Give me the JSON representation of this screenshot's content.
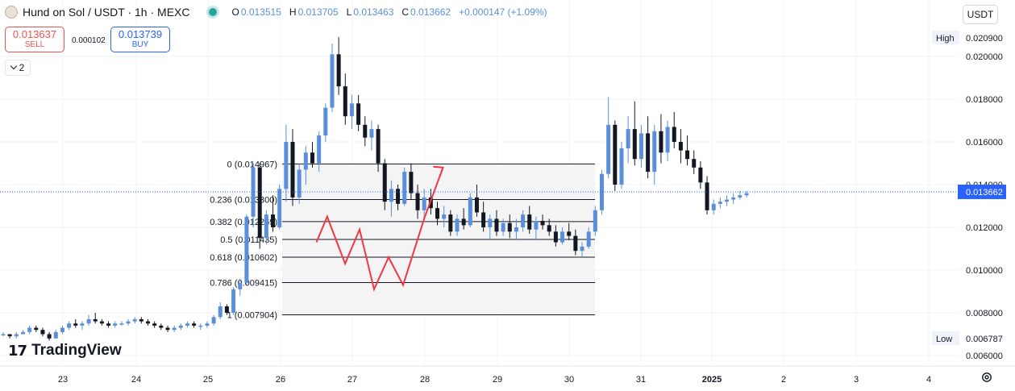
{
  "header": {
    "symbol": "Hund on Sol / USDT · 1h · MEXC",
    "o_label": "O",
    "o_value": "0.013515",
    "h_label": "H",
    "h_value": "0.013705",
    "l_label": "L",
    "l_value": "0.013463",
    "c_label": "C",
    "c_value": "0.013662",
    "change": "+0.000147 (+1.09%)"
  },
  "trade": {
    "sell_price": "0.013637",
    "sell_label": "SELL",
    "spread": "0.000102",
    "buy_price": "0.013739",
    "buy_label": "BUY"
  },
  "indicators_toggle": {
    "count": "2"
  },
  "currency_selector": {
    "label": "USDT"
  },
  "branding": {
    "logo_mark": "17",
    "name": "TradingView"
  },
  "colors": {
    "up": "#5b8fd9",
    "down": "#131722",
    "drawing": "#f23645",
    "last_price": "#2962ff"
  },
  "chart_data": {
    "type": "candlestick",
    "y_axis": {
      "ticks": [
        "0.020000",
        "0.018000",
        "0.016000",
        "0.014000",
        "0.012000",
        "0.010000",
        "0.008000",
        "0.006000"
      ],
      "range": [
        0.0055,
        0.0216
      ],
      "high_label": "High",
      "high_value": "0.020900",
      "low_label": "Low",
      "low_value": "0.006787",
      "last_price": "0.013662"
    },
    "x_axis": {
      "ticks": [
        "23",
        "24",
        "25",
        "26",
        "27",
        "28",
        "29",
        "30",
        "31",
        "2025",
        "2",
        "3",
        "4"
      ]
    },
    "fibonacci": [
      {
        "label": "0 (0.014967)",
        "price": 0.014967
      },
      {
        "label": "0.236 (0.013300)",
        "price": 0.0133
      },
      {
        "label": "0.382 (0.012269)",
        "price": 0.012269
      },
      {
        "label": "0.5 (0.011435)",
        "price": 0.011435
      },
      {
        "label": "0.618 (0.010602)",
        "price": 0.010602
      },
      {
        "label": "0.786 (0.009415)",
        "price": 0.009415
      },
      {
        "label": "1 (0.007904)",
        "price": 0.007904
      }
    ],
    "drawing_path": [
      {
        "x": "26.5",
        "y": 0.0113
      },
      {
        "x": "26.65",
        "y": 0.0125
      },
      {
        "x": "26.9",
        "y": 0.0103
      },
      {
        "x": "27.1",
        "y": 0.0119
      },
      {
        "x": "27.3",
        "y": 0.0091
      },
      {
        "x": "27.5",
        "y": 0.0106
      },
      {
        "x": "27.7",
        "y": 0.0093
      },
      {
        "x": "28.0",
        "y": 0.0125
      },
      {
        "x": "28.25",
        "y": 0.0148
      }
    ],
    "candles": [
      [
        0.007,
        0.0071,
        0.0069,
        0.007
      ],
      [
        0.007,
        0.007,
        0.0068,
        0.0069
      ],
      [
        0.0069,
        0.0071,
        0.0068,
        0.007
      ],
      [
        0.007,
        0.0072,
        0.007,
        0.0071
      ],
      [
        0.0071,
        0.0074,
        0.007,
        0.0073
      ],
      [
        0.0073,
        0.0074,
        0.0071,
        0.0072
      ],
      [
        0.0072,
        0.0073,
        0.0069,
        0.007
      ],
      [
        0.007,
        0.0071,
        0.0067,
        0.0068
      ],
      [
        0.0068,
        0.0072,
        0.0068,
        0.0071
      ],
      [
        0.0071,
        0.0074,
        0.007,
        0.0073
      ],
      [
        0.0073,
        0.0076,
        0.0072,
        0.0075
      ],
      [
        0.0075,
        0.0077,
        0.0073,
        0.0074
      ],
      [
        0.0074,
        0.0076,
        0.0072,
        0.0075
      ],
      [
        0.0075,
        0.0079,
        0.0074,
        0.0077
      ],
      [
        0.0077,
        0.008,
        0.0075,
        0.0076
      ],
      [
        0.0076,
        0.0077,
        0.0074,
        0.0075
      ],
      [
        0.0075,
        0.0076,
        0.0073,
        0.0074
      ],
      [
        0.0074,
        0.0076,
        0.0073,
        0.0075
      ],
      [
        0.0075,
        0.0076,
        0.0074,
        0.0075
      ],
      [
        0.0075,
        0.0077,
        0.0074,
        0.0076
      ],
      [
        0.0076,
        0.0078,
        0.0075,
        0.0077
      ],
      [
        0.0077,
        0.0078,
        0.0075,
        0.0076
      ],
      [
        0.0076,
        0.0077,
        0.0074,
        0.0075
      ],
      [
        0.0075,
        0.0076,
        0.0073,
        0.0074
      ],
      [
        0.0074,
        0.0075,
        0.0072,
        0.0073
      ],
      [
        0.0073,
        0.0074,
        0.0071,
        0.0072
      ],
      [
        0.0072,
        0.0074,
        0.0071,
        0.0073
      ],
      [
        0.0073,
        0.0075,
        0.0072,
        0.0074
      ],
      [
        0.0074,
        0.0076,
        0.0073,
        0.0075
      ],
      [
        0.0075,
        0.0076,
        0.0073,
        0.0074
      ],
      [
        0.0074,
        0.0075,
        0.0072,
        0.0074
      ],
      [
        0.0074,
        0.0076,
        0.0073,
        0.0075
      ],
      [
        0.0075,
        0.0079,
        0.0074,
        0.0078
      ],
      [
        0.0078,
        0.0085,
        0.0077,
        0.0083
      ],
      [
        0.0083,
        0.0084,
        0.0079,
        0.008
      ],
      [
        0.008,
        0.0092,
        0.0079,
        0.0091
      ],
      [
        0.0091,
        0.0096,
        0.0088,
        0.0094
      ],
      [
        0.0094,
        0.0126,
        0.0093,
        0.0125
      ],
      [
        0.0125,
        0.015,
        0.012,
        0.0148
      ],
      [
        0.0148,
        0.015,
        0.011,
        0.0115
      ],
      [
        0.0115,
        0.0128,
        0.0112,
        0.0126
      ],
      [
        0.0126,
        0.0135,
        0.0118,
        0.012
      ],
      [
        0.012,
        0.014,
        0.0119,
        0.0138
      ],
      [
        0.0138,
        0.0168,
        0.0132,
        0.016
      ],
      [
        0.016,
        0.0166,
        0.013,
        0.0134
      ],
      [
        0.0134,
        0.015,
        0.0131,
        0.0147
      ],
      [
        0.0147,
        0.0158,
        0.014,
        0.0155
      ],
      [
        0.0155,
        0.016,
        0.0148,
        0.015
      ],
      [
        0.015,
        0.0165,
        0.0146,
        0.0163
      ],
      [
        0.0163,
        0.0178,
        0.016,
        0.0176
      ],
      [
        0.0176,
        0.0206,
        0.0174,
        0.0201
      ],
      [
        0.0201,
        0.0209,
        0.0182,
        0.0186
      ],
      [
        0.0186,
        0.0192,
        0.0168,
        0.0172
      ],
      [
        0.0172,
        0.0182,
        0.0166,
        0.0178
      ],
      [
        0.0178,
        0.0182,
        0.0165,
        0.0168
      ],
      [
        0.0168,
        0.0172,
        0.0158,
        0.0162
      ],
      [
        0.0162,
        0.017,
        0.0156,
        0.0166
      ],
      [
        0.0166,
        0.0168,
        0.0146,
        0.015
      ],
      [
        0.015,
        0.0152,
        0.0128,
        0.0132
      ],
      [
        0.0132,
        0.0142,
        0.0125,
        0.0138
      ],
      [
        0.0138,
        0.014,
        0.0128,
        0.0131
      ],
      [
        0.0131,
        0.0148,
        0.013,
        0.0146
      ],
      [
        0.0146,
        0.015,
        0.0133,
        0.0136
      ],
      [
        0.0136,
        0.014,
        0.0124,
        0.0128
      ],
      [
        0.0128,
        0.0138,
        0.0124,
        0.0134
      ],
      [
        0.0134,
        0.0138,
        0.0126,
        0.0129
      ],
      [
        0.0129,
        0.0132,
        0.0121,
        0.0124
      ],
      [
        0.0124,
        0.013,
        0.012,
        0.0126
      ],
      [
        0.0126,
        0.0128,
        0.0116,
        0.0118
      ],
      [
        0.0118,
        0.0126,
        0.0116,
        0.0124
      ],
      [
        0.0124,
        0.0129,
        0.0119,
        0.0121
      ],
      [
        0.0121,
        0.0136,
        0.012,
        0.0134
      ],
      [
        0.0134,
        0.014,
        0.0125,
        0.0127
      ],
      [
        0.0127,
        0.0132,
        0.0118,
        0.012
      ],
      [
        0.012,
        0.0126,
        0.0114,
        0.0124
      ],
      [
        0.0124,
        0.0128,
        0.0116,
        0.0118
      ],
      [
        0.0118,
        0.0124,
        0.0116,
        0.0122
      ],
      [
        0.0122,
        0.0126,
        0.0115,
        0.0118
      ],
      [
        0.0118,
        0.0124,
        0.0114,
        0.012
      ],
      [
        0.012,
        0.0128,
        0.0118,
        0.0126
      ],
      [
        0.0126,
        0.013,
        0.0117,
        0.0119
      ],
      [
        0.0119,
        0.0125,
        0.0114,
        0.0123
      ],
      [
        0.0123,
        0.0126,
        0.0119,
        0.0121
      ],
      [
        0.0121,
        0.0124,
        0.0116,
        0.0118
      ],
      [
        0.0118,
        0.0121,
        0.0111,
        0.0113
      ],
      [
        0.0113,
        0.012,
        0.0112,
        0.0118
      ],
      [
        0.0118,
        0.0122,
        0.0114,
        0.0116
      ],
      [
        0.0116,
        0.0119,
        0.0107,
        0.0109
      ],
      [
        0.0109,
        0.0113,
        0.0106,
        0.0111
      ],
      [
        0.0111,
        0.012,
        0.011,
        0.0118
      ],
      [
        0.0118,
        0.013,
        0.0116,
        0.0128
      ],
      [
        0.0128,
        0.0147,
        0.0126,
        0.0145
      ],
      [
        0.0145,
        0.0181,
        0.0143,
        0.0168
      ],
      [
        0.0168,
        0.017,
        0.0137,
        0.014
      ],
      [
        0.014,
        0.016,
        0.0138,
        0.0157
      ],
      [
        0.0157,
        0.0172,
        0.015,
        0.0166
      ],
      [
        0.0166,
        0.0179,
        0.0149,
        0.0152
      ],
      [
        0.0152,
        0.0168,
        0.0148,
        0.0164
      ],
      [
        0.0164,
        0.0172,
        0.0143,
        0.0146
      ],
      [
        0.0146,
        0.0168,
        0.014,
        0.0165
      ],
      [
        0.0165,
        0.0173,
        0.015,
        0.0155
      ],
      [
        0.0155,
        0.017,
        0.0151,
        0.0167
      ],
      [
        0.0167,
        0.0174,
        0.0157,
        0.016
      ],
      [
        0.016,
        0.0166,
        0.015,
        0.0156
      ],
      [
        0.0156,
        0.0163,
        0.0149,
        0.0152
      ],
      [
        0.0152,
        0.0156,
        0.0145,
        0.0148
      ],
      [
        0.0148,
        0.0151,
        0.0138,
        0.0141
      ],
      [
        0.0141,
        0.0144,
        0.0126,
        0.0128
      ],
      [
        0.0128,
        0.0133,
        0.0126,
        0.0131
      ],
      [
        0.0131,
        0.0134,
        0.0129,
        0.0132
      ],
      [
        0.0132,
        0.0135,
        0.013,
        0.0133
      ],
      [
        0.0133,
        0.0136,
        0.0131,
        0.0134
      ],
      [
        0.0134,
        0.0137,
        0.0133,
        0.0135
      ],
      [
        0.0135,
        0.0137,
        0.0134,
        0.0136
      ]
    ]
  }
}
